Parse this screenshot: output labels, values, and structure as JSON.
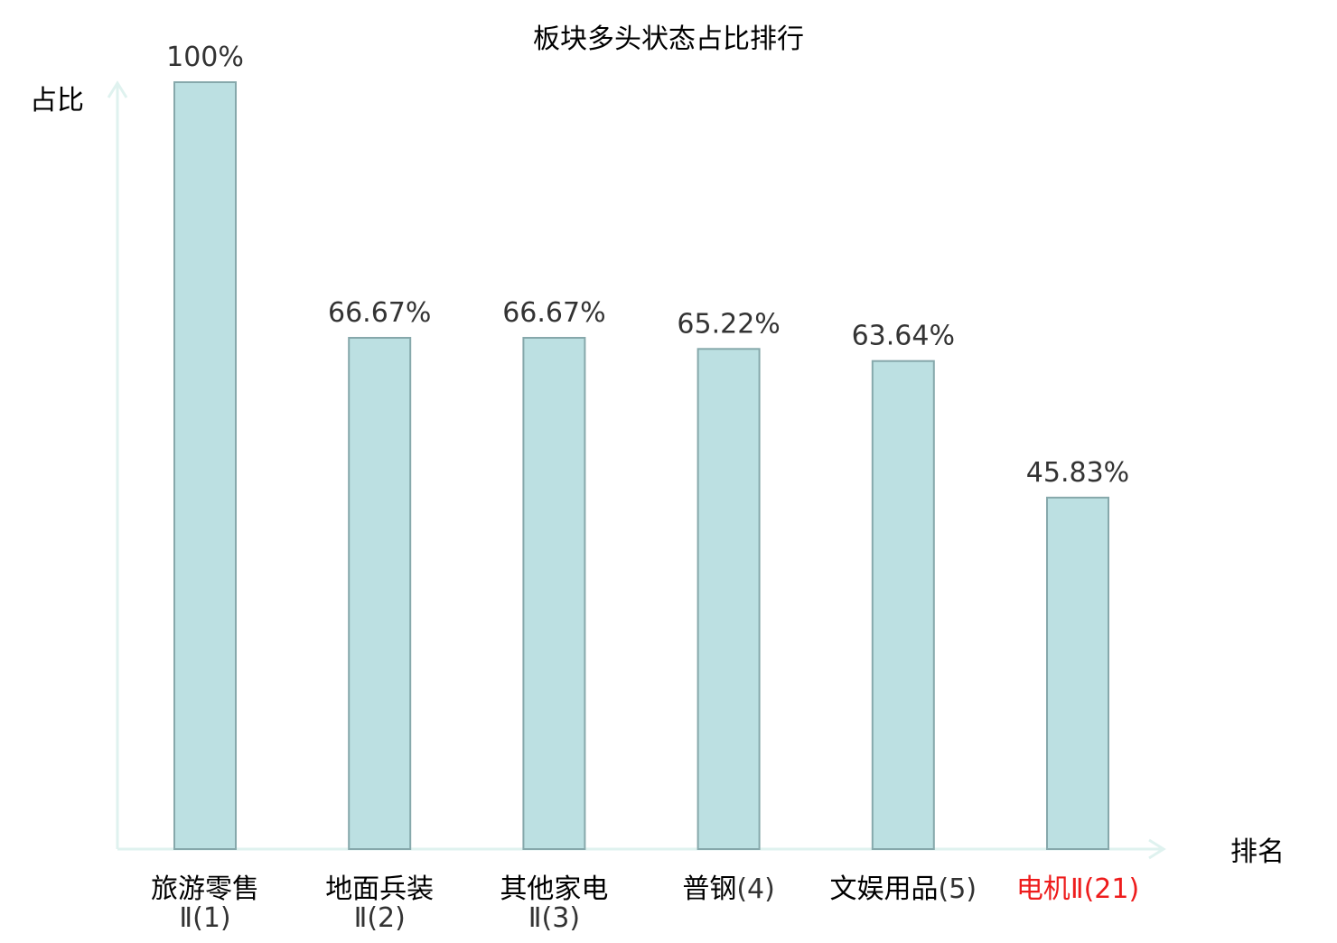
{
  "chart_data": {
    "type": "bar",
    "title": "板块多头状态占比排行",
    "ylabel": "占比",
    "xlabel": "排名",
    "ylim": [
      0,
      100
    ],
    "grid": false,
    "legend": "none",
    "categories": [
      {
        "line1": "旅游零售",
        "line2_prefix": "Ⅱ",
        "rank": "(1)"
      },
      {
        "line1": "地面兵装",
        "line2_prefix": "Ⅱ",
        "rank": "(2)"
      },
      {
        "line1": "其他家电",
        "line2_prefix": "Ⅱ",
        "rank": "(3)"
      },
      {
        "line1": "普钢",
        "line2_prefix": "",
        "rank": "(4)"
      },
      {
        "line1": "文娱用品",
        "line2_prefix": "",
        "rank": "(5)"
      },
      {
        "line1": "电机",
        "line2_prefix": "Ⅱ",
        "rank": "(21)"
      }
    ],
    "values": [
      100,
      66.67,
      66.67,
      65.22,
      63.64,
      45.83
    ],
    "value_labels": [
      "100%",
      "66.67%",
      "66.67%",
      "65.22%",
      "63.64%",
      "45.83%"
    ],
    "highlight_index": 5
  },
  "colors": {
    "bar_fill": "#bce0e2",
    "bar_stroke": "#86a8ab",
    "axis": "#dff2ef",
    "text": "#000000",
    "label_text": "#333333",
    "highlight": "#ee1c1c"
  }
}
